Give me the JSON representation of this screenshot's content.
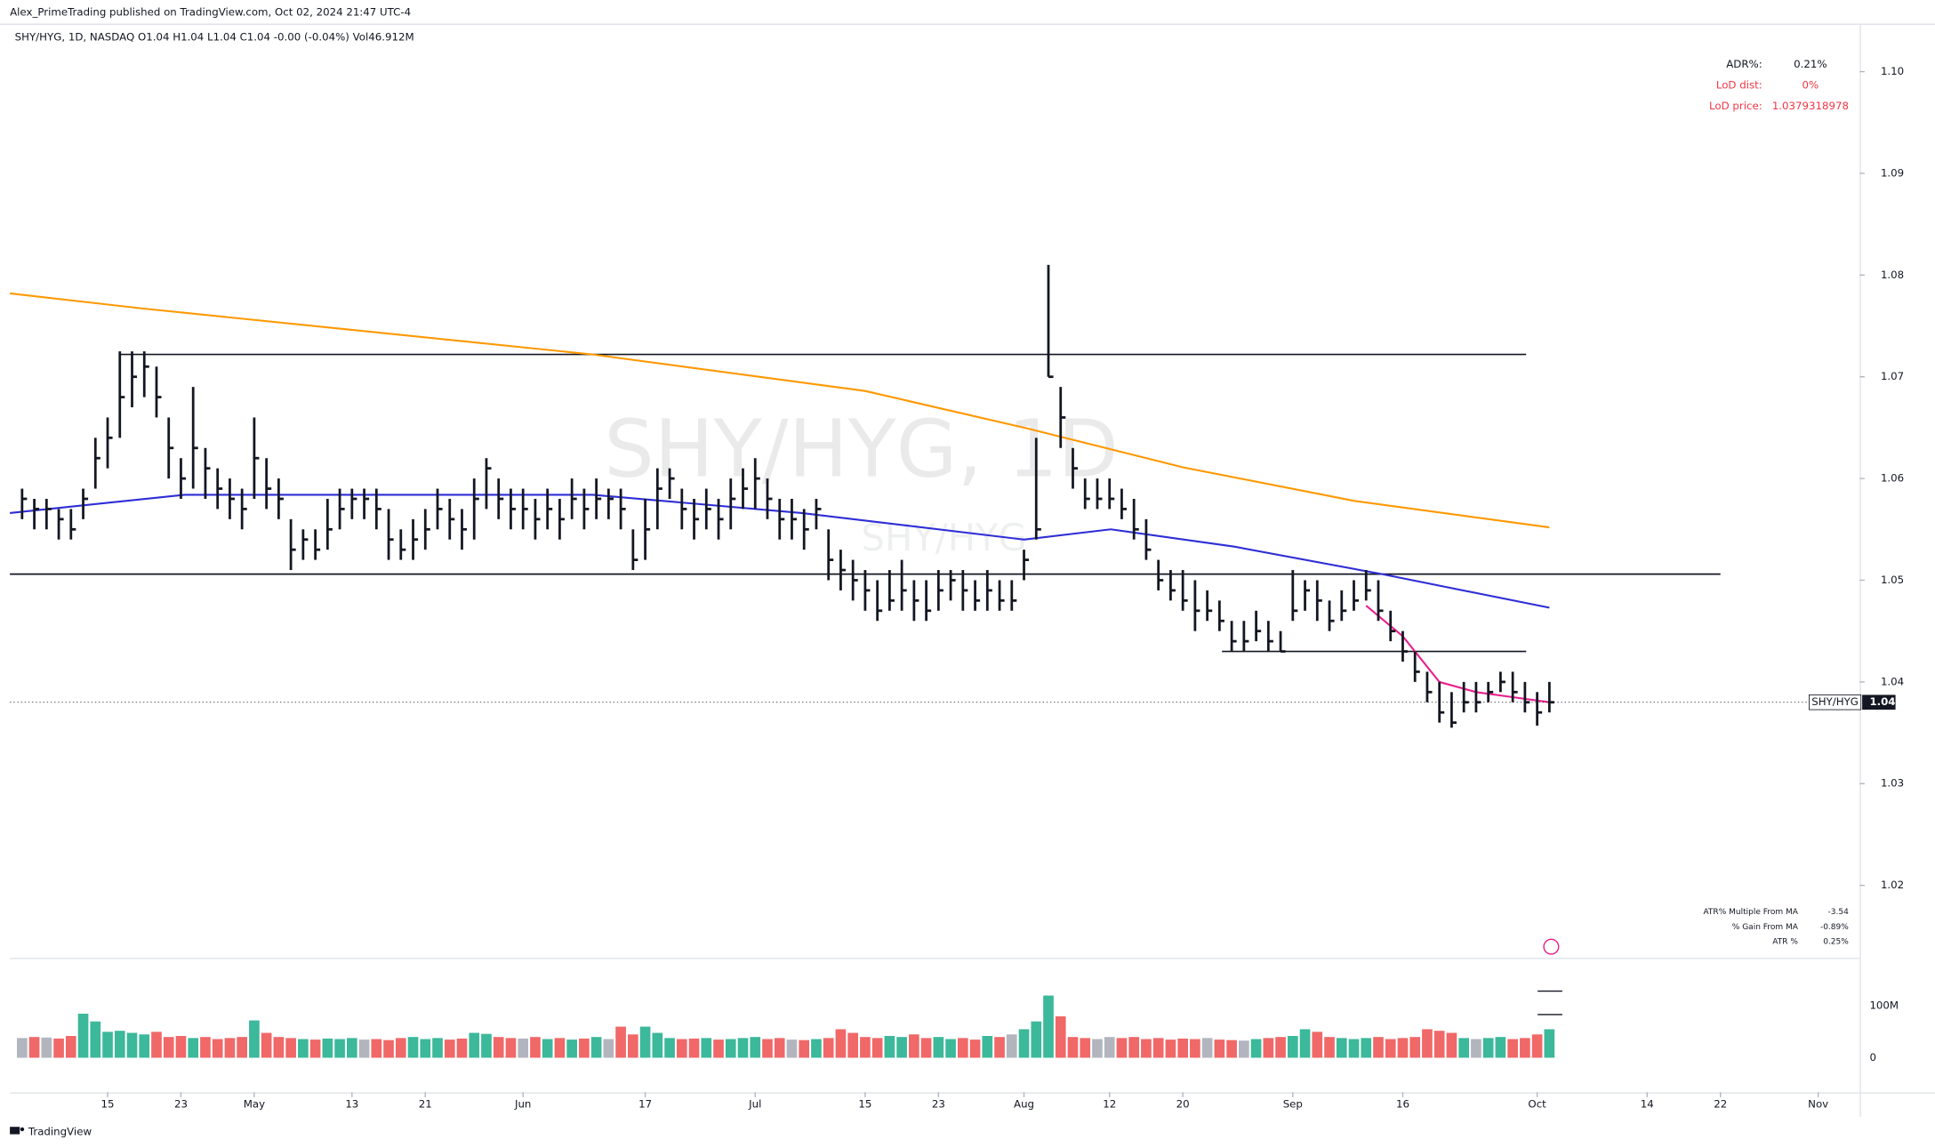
{
  "chart_data": {
    "type": "ohlc",
    "header": "Alex_PrimeTrading published on TradingView.com, Oct 02, 2024 21:47 UTC-4",
    "legend": "SHY/HYG, 1D, NASDAQ  O1.04  H1.04  L1.04  C1.04  -0.00 (-0.04%)  Vol46.912M",
    "watermark": "SHY/HYG, 1D",
    "watermark_small": "SHY/HYG",
    "brand": "TradingView",
    "price_tag": {
      "symbol": "SHY/HYG",
      "label": "1.04"
    },
    "bar_color": "#131722",
    "xlim": [
      -1,
      150.4
    ],
    "ylim": [
      1.013,
      1.1046
    ],
    "yticks": [
      1.02,
      1.03,
      1.04,
      1.05,
      1.06,
      1.07,
      1.08,
      1.09,
      {
        "value": 1.1,
        "label": "1.10"
      }
    ],
    "xticks": [
      {
        "value": 7,
        "label": "15"
      },
      {
        "value": 13,
        "label": "23"
      },
      {
        "value": 19,
        "label": "May"
      },
      {
        "value": 27,
        "label": "13"
      },
      {
        "value": 33,
        "label": "21"
      },
      {
        "value": 41,
        "label": "Jun"
      },
      {
        "value": 51,
        "label": "17"
      },
      {
        "value": 60,
        "label": "Jul"
      },
      {
        "value": 69,
        "label": "15"
      },
      {
        "value": 75,
        "label": "23"
      },
      {
        "value": 82,
        "label": "Aug"
      },
      {
        "value": 89,
        "label": "12"
      },
      {
        "value": 95,
        "label": "20"
      },
      {
        "value": 104,
        "label": "Sep"
      },
      {
        "value": 113,
        "label": "16"
      },
      {
        "value": 124,
        "label": "Oct"
      },
      {
        "value": 133,
        "label": "14"
      },
      {
        "value": 139,
        "label": "22"
      },
      {
        "value": 147,
        "label": "Nov"
      }
    ],
    "high": [
      1.059,
      1.058,
      1.058,
      1.057,
      1.057,
      1.059,
      1.064,
      1.066,
      1.0725,
      1.0725,
      1.0725,
      1.071,
      1.066,
      1.062,
      1.069,
      1.063,
      1.061,
      1.06,
      1.059,
      1.066,
      1.062,
      1.06,
      1.056,
      1.055,
      1.055,
      1.058,
      1.059,
      1.059,
      1.059,
      1.059,
      1.057,
      1.055,
      1.056,
      1.057,
      1.059,
      1.058,
      1.057,
      1.06,
      1.062,
      1.06,
      1.059,
      1.059,
      1.058,
      1.059,
      1.058,
      1.06,
      1.059,
      1.06,
      1.059,
      1.059,
      1.055,
      1.058,
      1.061,
      1.061,
      1.059,
      1.058,
      1.059,
      1.058,
      1.06,
      1.061,
      1.062,
      1.06,
      1.058,
      1.058,
      1.057,
      1.058,
      1.055,
      1.053,
      1.052,
      1.051,
      1.05,
      1.051,
      1.052,
      1.05,
      1.05,
      1.051,
      1.051,
      1.051,
      1.05,
      1.051,
      1.05,
      1.05,
      1.053,
      1.064,
      1.081,
      1.069,
      1.063,
      1.06,
      1.06,
      1.06,
      1.059,
      1.058,
      1.056,
      1.052,
      1.051,
      1.051,
      1.05,
      1.049,
      1.048,
      1.046,
      1.046,
      1.047,
      1.046,
      1.045,
      1.051,
      1.05,
      1.05,
      1.048,
      1.049,
      1.05,
      1.051,
      1.05,
      1.047,
      1.045,
      1.043,
      1.041,
      1.04,
      1.039,
      1.04,
      1.04,
      1.04,
      1.041,
      1.041,
      1.04,
      1.039,
      1.04
    ],
    "low": [
      1.056,
      1.055,
      1.055,
      1.054,
      1.054,
      1.056,
      1.059,
      1.061,
      1.064,
      1.067,
      1.068,
      1.066,
      1.06,
      1.058,
      1.059,
      1.058,
      1.057,
      1.056,
      1.055,
      1.058,
      1.057,
      1.056,
      1.051,
      1.052,
      1.052,
      1.053,
      1.055,
      1.056,
      1.056,
      1.055,
      1.052,
      1.052,
      1.052,
      1.053,
      1.055,
      1.054,
      1.053,
      1.054,
      1.057,
      1.056,
      1.055,
      1.055,
      1.054,
      1.055,
      1.054,
      1.056,
      1.055,
      1.056,
      1.056,
      1.055,
      1.051,
      1.052,
      1.055,
      1.058,
      1.055,
      1.054,
      1.055,
      1.054,
      1.055,
      1.057,
      1.057,
      1.056,
      1.054,
      1.054,
      1.053,
      1.055,
      1.05,
      1.049,
      1.048,
      1.047,
      1.046,
      1.047,
      1.047,
      1.046,
      1.046,
      1.047,
      1.048,
      1.047,
      1.047,
      1.047,
      1.047,
      1.047,
      1.05,
      1.054,
      1.07,
      1.063,
      1.059,
      1.057,
      1.057,
      1.057,
      1.056,
      1.054,
      1.052,
      1.049,
      1.048,
      1.047,
      1.045,
      1.046,
      1.045,
      1.043,
      1.043,
      1.044,
      1.043,
      1.043,
      1.046,
      1.047,
      1.046,
      1.045,
      1.046,
      1.047,
      1.048,
      1.046,
      1.044,
      1.042,
      1.04,
      1.038,
      1.036,
      1.0355,
      1.037,
      1.037,
      1.038,
      1.039,
      1.038,
      1.037,
      1.0357,
      1.037
    ],
    "close": [
      1.058,
      1.057,
      1.057,
      1.056,
      1.055,
      1.058,
      1.062,
      1.064,
      1.068,
      1.07,
      1.071,
      1.068,
      1.063,
      1.06,
      1.063,
      1.061,
      1.059,
      1.058,
      1.057,
      1.062,
      1.059,
      1.058,
      1.053,
      1.054,
      1.053,
      1.055,
      1.057,
      1.058,
      1.058,
      1.057,
      1.054,
      1.053,
      1.054,
      1.055,
      1.057,
      1.056,
      1.055,
      1.058,
      1.061,
      1.058,
      1.057,
      1.057,
      1.056,
      1.057,
      1.056,
      1.058,
      1.057,
      1.058,
      1.058,
      1.057,
      1.052,
      1.055,
      1.059,
      1.06,
      1.057,
      1.056,
      1.057,
      1.056,
      1.058,
      1.059,
      1.06,
      1.058,
      1.056,
      1.056,
      1.055,
      1.057,
      1.052,
      1.051,
      1.05,
      1.049,
      1.047,
      1.048,
      1.049,
      1.048,
      1.047,
      1.049,
      1.05,
      1.049,
      1.048,
      1.049,
      1.048,
      1.048,
      1.052,
      1.055,
      1.07,
      1.066,
      1.061,
      1.058,
      1.058,
      1.058,
      1.057,
      1.055,
      1.053,
      1.05,
      1.049,
      1.048,
      1.047,
      1.047,
      1.046,
      1.044,
      1.044,
      1.045,
      1.044,
      1.043,
      1.047,
      1.049,
      1.048,
      1.046,
      1.047,
      1.048,
      1.049,
      1.047,
      1.045,
      1.043,
      1.041,
      1.039,
      1.037,
      1.036,
      1.038,
      1.038,
      1.039,
      1.04,
      1.039,
      1.038,
      1.037,
      1.038
    ],
    "lines": [
      {
        "color": "#ff9800",
        "x": [
          -1,
          10,
          46.7,
          69,
          82,
          95,
          109,
          125
        ],
        "values": [
          1.0782,
          1.0767,
          1.0722,
          1.0686,
          1.065,
          1.0611,
          1.0578,
          1.0552
        ]
      },
      {
        "color": "#2e2ed6",
        "x": [
          -1,
          13.3,
          46.7,
          63.8,
          82,
          89.1,
          99.2,
          111.3,
          125
        ],
        "values": [
          1.0566,
          1.0584,
          1.0584,
          1.0566,
          1.054,
          1.055,
          1.0533,
          1.0506,
          1.0473
        ]
      },
      {
        "color": "#e91e8c",
        "x": [
          110,
          113,
          116,
          119,
          122,
          125
        ],
        "values": [
          1.0475,
          1.0445,
          1.04,
          1.039,
          1.0385,
          1.038
        ]
      }
    ],
    "levels": [
      {
        "value": 1.0722,
        "x": [
          8,
          123.1
        ]
      },
      {
        "value": 1.0506,
        "x": [
          -1,
          139
        ]
      },
      {
        "value": 1.043,
        "x": [
          98.2,
          123.1
        ]
      }
    ],
    "volume": {
      "ylim": [
        -66.7,
        190.5
      ],
      "yticks": [
        0,
        {
          "value": 100,
          "label": "100M"
        }
      ],
      "up_color": "#3cb89a",
      "down_color": "#f06868",
      "flat_color": "#b2b5be",
      "values": [
        38,
        40,
        39,
        37,
        42,
        85,
        70,
        50,
        52,
        48,
        45,
        50,
        40,
        42,
        38,
        40,
        36,
        38,
        40,
        72,
        48,
        40,
        38,
        36,
        35,
        37,
        36,
        38,
        35,
        36,
        34,
        38,
        40,
        36,
        38,
        35,
        37,
        48,
        46,
        40,
        38,
        37,
        40,
        36,
        38,
        35,
        37,
        40,
        36,
        60,
        45,
        60,
        48,
        38,
        36,
        37,
        38,
        35,
        36,
        38,
        40,
        36,
        38,
        35,
        34,
        36,
        38,
        55,
        48,
        40,
        38,
        42,
        40,
        45,
        38,
        40,
        36,
        38,
        35,
        42,
        40,
        45,
        55,
        70,
        120,
        80,
        40,
        38,
        36,
        40,
        38,
        40,
        36,
        38,
        35,
        37,
        36,
        38,
        35,
        34,
        33,
        36,
        38,
        40,
        42,
        55,
        50,
        40,
        38,
        36,
        38,
        40,
        36,
        38,
        40,
        55,
        52,
        48,
        38,
        36,
        38,
        40,
        36,
        38,
        45,
        55
      ]
    },
    "stats_top": [
      [
        "ADR%:",
        "0.21%"
      ],
      [
        "LoD dist:",
        "0%"
      ],
      [
        "LoD price:",
        "1.0379318978"
      ]
    ],
    "stats_bottom": [
      [
        "ATR% Multiple From MA",
        "-3.54"
      ],
      [
        "% Gain From MA",
        "-0.89%"
      ],
      [
        "ATR %",
        "0.25%"
      ]
    ]
  }
}
